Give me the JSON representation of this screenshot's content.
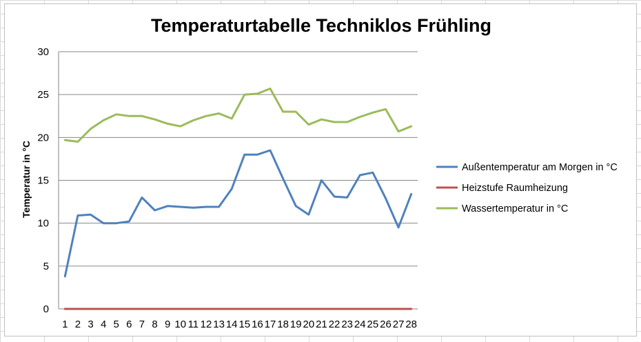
{
  "chart_data": {
    "type": "line",
    "title": "Temperaturtabelle Techniklos Frühling",
    "xlabel": "",
    "ylabel": "Temperatur in °C",
    "ylim": [
      0,
      30
    ],
    "yticks": [
      0,
      5,
      10,
      15,
      20,
      25,
      30
    ],
    "grid": "horizontal",
    "legend_position": "right",
    "categories": [
      "1",
      "2",
      "3",
      "4",
      "5",
      "6",
      "7",
      "8",
      "9",
      "10",
      "11",
      "12",
      "13",
      "14",
      "15",
      "16",
      "17",
      "18",
      "19",
      "20",
      "21",
      "22",
      "23",
      "24",
      "25",
      "26",
      "27",
      "28"
    ],
    "series": [
      {
        "name": "Außentemperatur am Morgen in °C",
        "color": "#4f81bd",
        "values": [
          3.8,
          10.9,
          11.0,
          10.0,
          10.0,
          10.2,
          13.0,
          11.5,
          12.0,
          11.9,
          11.8,
          11.9,
          11.9,
          14.0,
          18.0,
          18.0,
          18.5,
          15.2,
          12.0,
          11.0,
          15.0,
          13.1,
          13.0,
          15.6,
          15.9,
          12.9,
          9.5,
          13.4
        ]
      },
      {
        "name": "Heizstufe Raumheizung",
        "color": "#c0504d",
        "values": [
          0,
          0,
          0,
          0,
          0,
          0,
          0,
          0,
          0,
          0,
          0,
          0,
          0,
          0,
          0,
          0,
          0,
          0,
          0,
          0,
          0,
          0,
          0,
          0,
          0,
          0,
          0,
          0
        ]
      },
      {
        "name": "Wassertemperatur in °C",
        "color": "#9bbb59",
        "values": [
          19.7,
          19.5,
          21.0,
          22.0,
          22.7,
          22.5,
          22.5,
          22.1,
          21.6,
          21.3,
          22.0,
          22.5,
          22.8,
          22.2,
          25.0,
          25.1,
          25.7,
          23.0,
          23.0,
          21.5,
          22.1,
          21.8,
          21.8,
          22.4,
          22.9,
          23.3,
          20.7,
          21.3
        ]
      }
    ]
  }
}
